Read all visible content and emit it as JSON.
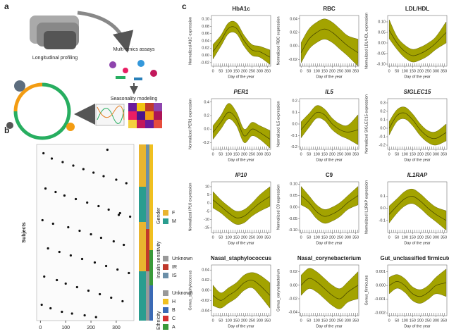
{
  "panel_labels": [
    "a",
    "b",
    "c"
  ],
  "panel_a": {
    "labels": [
      "Longitudinal profiling",
      "Multi-omics assays",
      "Seasonality modeling"
    ]
  },
  "chart_data": [
    {
      "type": "scatter",
      "ylabel": "Subjects",
      "xlim": [
        -15,
        370
      ],
      "ylim": [
        0,
        100
      ],
      "xticks": [
        0,
        100,
        200,
        300
      ],
      "color": "#111111",
      "x": [
        12,
        45,
        88,
        130,
        170,
        210,
        250,
        300,
        340,
        20,
        60,
        95,
        140,
        185,
        230,
        270,
        315,
        355,
        8,
        50,
        110,
        155,
        200,
        240,
        290,
        330,
        30,
        75,
        120,
        165,
        215,
        260,
        305,
        350,
        15,
        65,
        100,
        145,
        190,
        235,
        280,
        325,
        5,
        40,
        85,
        125,
        175,
        220,
        265,
        310
      ],
      "y": [
        95,
        92,
        90,
        88,
        86,
        84,
        82,
        80,
        78,
        75,
        73,
        71,
        69,
        67,
        65,
        63,
        61,
        59,
        57,
        55,
        53,
        51,
        49,
        47,
        45,
        43,
        41,
        39,
        37,
        35,
        33,
        31,
        29,
        27,
        25,
        23,
        21,
        19,
        17,
        15,
        13,
        11,
        9,
        7,
        5,
        4,
        3,
        2,
        97,
        60
      ],
      "legends": [
        {
          "title": "Gender",
          "entries": [
            {
              "label": "M",
              "color": "#2a9d8f"
            },
            {
              "label": "F",
              "color": "#e9b52f"
            }
          ]
        },
        {
          "title": "Insulin sensitivity",
          "entries": [
            {
              "label": "IS",
              "color": "#6b8fa8"
            },
            {
              "label": "IR",
              "color": "#c0392b"
            },
            {
              "label": "Unknown",
              "color": "#999999"
            }
          ]
        },
        {
          "title": "Ethnicity",
          "entries": [
            {
              "label": "A",
              "color": "#3a9a3a"
            },
            {
              "label": "C",
              "color": "#d43030"
            },
            {
              "label": "B",
              "color": "#3b6ab5"
            },
            {
              "label": "H",
              "color": "#f0c020"
            },
            {
              "label": "Unknown",
              "color": "#999999"
            }
          ]
        }
      ]
    },
    {
      "type": "line",
      "title": "HbA1c",
      "title_italic": false,
      "xlabel": "Day of the year",
      "ylabel": "Normalized A1C expression",
      "x": [
        0,
        50,
        100,
        150,
        200,
        250,
        300,
        365
      ],
      "values": [
        0.01,
        0.04,
        0.075,
        0.075,
        0.04,
        0.015,
        0.01,
        -0.005
      ],
      "lower": [
        -0.01,
        0.025,
        0.06,
        0.06,
        0.025,
        0.0,
        -0.005,
        -0.025
      ],
      "upper": [
        0.03,
        0.055,
        0.09,
        0.09,
        0.055,
        0.03,
        0.025,
        0.015
      ],
      "xlim": [
        -10,
        370
      ],
      "xticks": [
        0,
        50,
        100,
        150,
        200,
        250,
        300,
        350
      ],
      "ylim": [
        -0.03,
        0.11
      ],
      "yticks": [
        -0.02,
        {
          "value": 0,
          "label": "0.00"
        },
        0.02,
        0.04,
        0.06,
        0.08,
        {
          "value": 0.1,
          "label": "0.10"
        }
      ],
      "color": "#a3a300",
      "line_color": "#4d4d00"
    },
    {
      "type": "line",
      "title": "RBC",
      "title_italic": false,
      "xlabel": "Day of the year",
      "ylabel": "Normalized RBC expression",
      "x": [
        0,
        50,
        100,
        150,
        200,
        250,
        300,
        365
      ],
      "values": [
        -0.01,
        0.01,
        0.02,
        0.025,
        0.02,
        0.01,
        0.0,
        -0.01
      ],
      "lower": [
        -0.025,
        -0.005,
        0.005,
        0.01,
        0.005,
        -0.005,
        -0.015,
        -0.03
      ],
      "upper": [
        0.005,
        0.025,
        0.035,
        0.04,
        0.035,
        0.025,
        0.015,
        0.01
      ],
      "xlim": [
        -10,
        370
      ],
      "xticks": [
        0,
        50,
        100,
        150,
        200,
        250,
        300,
        350
      ],
      "ylim": [
        -0.03,
        0.045
      ],
      "yticks": [
        -0.02,
        {
          "value": 0,
          "label": "0.00"
        },
        0.02,
        0.04
      ],
      "color": "#a3a300",
      "line_color": "#4d4d00"
    },
    {
      "type": "line",
      "title": "LDL/HDL",
      "title_italic": false,
      "xlabel": "Day of the year",
      "ylabel": "Normalized LDL/HDL expression",
      "x": [
        0,
        50,
        100,
        150,
        200,
        250,
        300,
        365
      ],
      "values": [
        0.06,
        0.0,
        -0.04,
        -0.06,
        -0.05,
        -0.03,
        0.0,
        0.05
      ],
      "lower": [
        0.02,
        -0.03,
        -0.07,
        -0.09,
        -0.08,
        -0.06,
        -0.03,
        0.0
      ],
      "upper": [
        0.11,
        0.03,
        -0.01,
        -0.03,
        -0.02,
        0.0,
        0.03,
        0.1
      ],
      "xlim": [
        -10,
        370
      ],
      "xticks": [
        0,
        50,
        100,
        150,
        200,
        250,
        300,
        350
      ],
      "ylim": [
        -0.11,
        0.13
      ],
      "yticks": [
        {
          "value": -0.1,
          "label": "-0.10"
        },
        -0.05,
        {
          "value": 0,
          "label": "0.00"
        },
        0.05,
        {
          "value": 0.1,
          "label": "0.10"
        }
      ],
      "color": "#a3a300",
      "line_color": "#4d4d00"
    },
    {
      "type": "line",
      "title": "PER1",
      "title_italic": true,
      "xlabel": "Day of the year",
      "ylabel": "Normalized PER1 expression",
      "x": [
        0,
        50,
        100,
        150,
        200,
        250,
        300,
        365
      ],
      "values": [
        -0.05,
        0.1,
        0.25,
        0.15,
        -0.1,
        0.0,
        -0.05,
        -0.15
      ],
      "lower": [
        -0.15,
        0.0,
        0.15,
        0.05,
        -0.2,
        -0.1,
        -0.15,
        -0.28
      ],
      "upper": [
        0.05,
        0.2,
        0.38,
        0.25,
        0.0,
        0.1,
        0.05,
        -0.02
      ],
      "xlim": [
        -10,
        370
      ],
      "xticks": [
        0,
        50,
        100,
        150,
        200,
        250,
        300,
        350
      ],
      "ylim": [
        -0.3,
        0.45
      ],
      "yticks": [
        -0.2,
        {
          "value": 0,
          "label": "0.0"
        },
        0.2,
        0.4
      ],
      "color": "#a3a300",
      "line_color": "#4d4d00"
    },
    {
      "type": "line",
      "title": "IL5",
      "title_italic": true,
      "xlabel": "Day of the year",
      "ylabel": "Normalized IL5 expression",
      "x": [
        0,
        50,
        100,
        150,
        200,
        250,
        300,
        365
      ],
      "values": [
        -0.05,
        0.03,
        0.1,
        0.08,
        0.0,
        -0.05,
        -0.07,
        -0.05
      ],
      "lower": [
        -0.12,
        -0.03,
        0.05,
        0.03,
        -0.05,
        -0.1,
        -0.13,
        -0.18
      ],
      "upper": [
        0.02,
        0.09,
        0.16,
        0.13,
        0.05,
        0.0,
        -0.01,
        0.08
      ],
      "xlim": [
        -10,
        370
      ],
      "xticks": [
        0,
        50,
        100,
        150,
        200,
        250,
        300,
        350
      ],
      "ylim": [
        -0.22,
        0.22
      ],
      "yticks": [
        -0.2,
        -0.1,
        {
          "value": 0,
          "label": "0.0"
        },
        0.1,
        0.2
      ],
      "color": "#a3a300",
      "line_color": "#4d4d00"
    },
    {
      "type": "line",
      "title": "SIGLEC15",
      "title_italic": true,
      "xlabel": "Day of the year",
      "ylabel": "Normalized SIGLEC15 expression",
      "x": [
        0,
        50,
        100,
        150,
        200,
        250,
        300,
        365
      ],
      "values": [
        0.0,
        0.15,
        0.18,
        0.1,
        -0.02,
        -0.1,
        -0.12,
        -0.05
      ],
      "lower": [
        -0.08,
        0.08,
        0.11,
        0.03,
        -0.09,
        -0.17,
        -0.2,
        -0.15
      ],
      "upper": [
        0.08,
        0.22,
        0.25,
        0.17,
        0.05,
        -0.03,
        -0.04,
        0.05
      ],
      "xlim": [
        -10,
        370
      ],
      "xticks": [
        0,
        50,
        100,
        150,
        200,
        250,
        300,
        350
      ],
      "ylim": [
        -0.25,
        0.35
      ],
      "yticks": [
        -0.2,
        -0.1,
        {
          "value": 0,
          "label": "0.0"
        },
        0.1,
        0.2,
        0.3
      ],
      "color": "#a3a300",
      "line_color": "#4d4d00"
    },
    {
      "type": "line",
      "title": "IP10",
      "title_italic": true,
      "xlabel": "Day of the year",
      "ylabel": "Normalized IP10 expression",
      "x": [
        0,
        50,
        100,
        150,
        200,
        250,
        300,
        365
      ],
      "values": [
        2,
        -2,
        -6,
        -9,
        -8,
        -4,
        0,
        4
      ],
      "lower": [
        -3,
        -6,
        -10,
        -13,
        -12,
        -8,
        -5,
        -2
      ],
      "upper": [
        7,
        2,
        -2,
        -5,
        -4,
        0,
        5,
        10
      ],
      "xlim": [
        -10,
        370
      ],
      "xticks": [
        0,
        50,
        100,
        150,
        200,
        250,
        300,
        350
      ],
      "ylim": [
        -18,
        13
      ],
      "yticks": [
        -15,
        -10,
        -5,
        0,
        5,
        10
      ],
      "color": "#a3a300",
      "line_color": "#4d4d00"
    },
    {
      "type": "line",
      "title": "C9",
      "title_italic": false,
      "xlabel": "Day of the year",
      "ylabel": "Normalized C9 expression",
      "x": [
        0,
        50,
        100,
        150,
        200,
        250,
        300,
        365
      ],
      "values": [
        0.05,
        0.02,
        -0.02,
        -0.04,
        -0.03,
        -0.01,
        0.02,
        0.05
      ],
      "lower": [
        0.01,
        -0.01,
        -0.05,
        -0.07,
        -0.06,
        -0.04,
        -0.01,
        0.01
      ],
      "upper": [
        0.09,
        0.05,
        0.01,
        -0.01,
        0.0,
        0.02,
        0.05,
        0.09
      ],
      "xlim": [
        -10,
        370
      ],
      "xticks": [
        0,
        50,
        100,
        150,
        200,
        250,
        300,
        350
      ],
      "ylim": [
        -0.11,
        0.11
      ],
      "yticks": [
        {
          "value": -0.1,
          "label": "-0.10"
        },
        -0.05,
        {
          "value": 0,
          "label": "0.00"
        },
        0.05,
        {
          "value": 0.1,
          "label": "0.10"
        }
      ],
      "color": "#a3a300",
      "line_color": "#4d4d00"
    },
    {
      "type": "line",
      "title": "IL1RAP",
      "title_italic": true,
      "xlabel": "Day of the year",
      "ylabel": "Normalized IL1RAP expression",
      "x": [
        0,
        50,
        100,
        150,
        200,
        250,
        300,
        365
      ],
      "values": [
        -0.05,
        0.02,
        0.08,
        0.1,
        0.06,
        0.0,
        -0.05,
        -0.1
      ],
      "lower": [
        -0.12,
        -0.04,
        0.02,
        0.04,
        0.0,
        -0.06,
        -0.11,
        -0.18
      ],
      "upper": [
        0.02,
        0.08,
        0.14,
        0.16,
        0.12,
        0.06,
        0.01,
        -0.02
      ],
      "xlim": [
        -10,
        370
      ],
      "xticks": [
        0,
        50,
        100,
        150,
        200,
        250,
        300,
        350
      ],
      "ylim": [
        -0.2,
        0.22
      ],
      "yticks": [
        -0.1,
        {
          "value": 0,
          "label": "0.0"
        },
        0.1
      ],
      "color": "#a3a300",
      "line_color": "#4d4d00"
    },
    {
      "type": "line",
      "title": "Nasal_staphylococcus",
      "title_italic": false,
      "xlabel": "Day of the year",
      "ylabel": "Genus_staphylococcus",
      "x": [
        0,
        50,
        100,
        150,
        200,
        250,
        300,
        365
      ],
      "values": [
        -0.01,
        -0.02,
        -0.01,
        0.0,
        0.015,
        0.02,
        0.01,
        -0.01
      ],
      "lower": [
        -0.03,
        -0.035,
        -0.025,
        -0.015,
        0.0,
        0.005,
        -0.01,
        -0.035
      ],
      "upper": [
        0.01,
        -0.005,
        0.005,
        0.015,
        0.03,
        0.035,
        0.03,
        0.015
      ],
      "xlim": [
        -10,
        370
      ],
      "xticks": [
        0,
        50,
        100,
        150,
        200,
        250,
        300,
        350
      ],
      "ylim": [
        -0.05,
        0.05
      ],
      "yticks": [
        -0.04,
        -0.02,
        {
          "value": 0,
          "label": "0.00"
        },
        0.02,
        0.04
      ],
      "color": "#a3a300",
      "line_color": "#4d4d00"
    },
    {
      "type": "line",
      "title": "Nasal_corynebacterium",
      "title_italic": false,
      "xlabel": "Day of the year",
      "ylabel": "Genus_corynebacterium",
      "x": [
        0,
        50,
        100,
        150,
        200,
        250,
        300,
        365
      ],
      "values": [
        0.0,
        0.01,
        0.005,
        -0.005,
        -0.015,
        -0.02,
        -0.01,
        0.0
      ],
      "lower": [
        -0.015,
        -0.005,
        -0.01,
        -0.02,
        -0.03,
        -0.035,
        -0.025,
        -0.02
      ],
      "upper": [
        0.015,
        0.025,
        0.02,
        0.01,
        0.0,
        -0.005,
        0.005,
        0.02
      ],
      "xlim": [
        -10,
        370
      ],
      "xticks": [
        0,
        50,
        100,
        150,
        200,
        250,
        300,
        350
      ],
      "ylim": [
        -0.045,
        0.03
      ],
      "yticks": [
        -0.04,
        -0.02,
        {
          "value": 0,
          "label": "0.00"
        },
        0.02
      ],
      "color": "#a3a300",
      "line_color": "#4d4d00"
    },
    {
      "type": "line",
      "title": "Gut_unclassified firmicutes",
      "title_italic": false,
      "xlabel": "Day of the year",
      "ylabel": "Genus_firmicutes",
      "x": [
        0,
        50,
        100,
        150,
        200,
        250,
        300,
        365
      ],
      "values": [
        0,
        0.0003,
        0,
        -0.0006,
        -0.0008,
        -0.0005,
        0,
        0.0002
      ],
      "lower": [
        -0.0006,
        -0.0002,
        -0.0005,
        -0.0011,
        -0.0013,
        -0.001,
        -0.0006,
        -0.0008
      ],
      "upper": [
        0.0006,
        0.0008,
        0.0005,
        -0.0001,
        -0.0003,
        0.0,
        0.0006,
        0.0012
      ],
      "xlim": [
        -10,
        370
      ],
      "xticks": [
        0,
        50,
        100,
        150,
        200,
        250,
        300,
        350
      ],
      "ylim": [
        -0.0022,
        0.0015
      ],
      "yticks": [
        -0.002,
        -0.001,
        {
          "value": 0,
          "label": "0.000"
        },
        0.001
      ],
      "color": "#a3a300",
      "line_color": "#4d4d00"
    }
  ]
}
